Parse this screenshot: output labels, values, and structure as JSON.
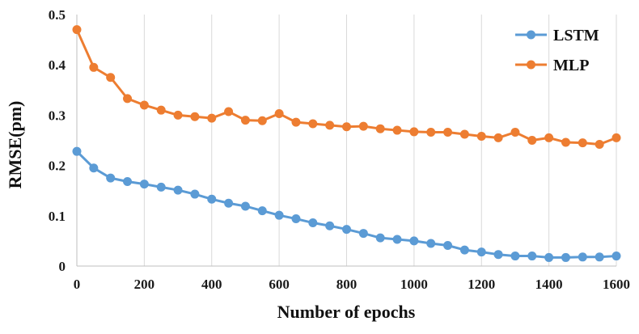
{
  "chart_data": {
    "type": "line",
    "xlabel": "Number of epochs",
    "ylabel": "RMSE(pm)",
    "xlim": [
      0,
      1600
    ],
    "ylim": [
      0,
      0.5
    ],
    "xticks": [
      "0",
      "200",
      "400",
      "600",
      "800",
      "1000",
      "1200",
      "1400",
      "1600"
    ],
    "yticks": [
      "0",
      "0.1",
      "0.2",
      "0.3",
      "0.4",
      "0.5"
    ],
    "grid": "vertical",
    "legend": "top-right",
    "x": [
      0,
      50,
      100,
      150,
      200,
      250,
      300,
      350,
      400,
      450,
      500,
      550,
      600,
      650,
      700,
      750,
      800,
      850,
      900,
      950,
      1000,
      1050,
      1100,
      1150,
      1200,
      1250,
      1300,
      1350,
      1400,
      1450,
      1500,
      1550,
      1600
    ],
    "series": [
      {
        "name": "LSTM",
        "color": "#5b9bd5",
        "values": [
          0.228,
          0.195,
          0.175,
          0.168,
          0.163,
          0.157,
          0.151,
          0.143,
          0.133,
          0.125,
          0.119,
          0.11,
          0.101,
          0.094,
          0.086,
          0.08,
          0.073,
          0.065,
          0.056,
          0.053,
          0.05,
          0.045,
          0.041,
          0.032,
          0.028,
          0.023,
          0.02,
          0.02,
          0.017,
          0.017,
          0.018,
          0.018,
          0.02
        ]
      },
      {
        "name": "MLP",
        "color": "#ed7d31",
        "values": [
          0.47,
          0.395,
          0.375,
          0.333,
          0.32,
          0.31,
          0.3,
          0.297,
          0.294,
          0.307,
          0.29,
          0.289,
          0.303,
          0.286,
          0.283,
          0.28,
          0.277,
          0.278,
          0.273,
          0.27,
          0.267,
          0.266,
          0.266,
          0.262,
          0.258,
          0.255,
          0.266,
          0.25,
          0.255,
          0.246,
          0.245,
          0.242,
          0.255
        ]
      }
    ]
  }
}
